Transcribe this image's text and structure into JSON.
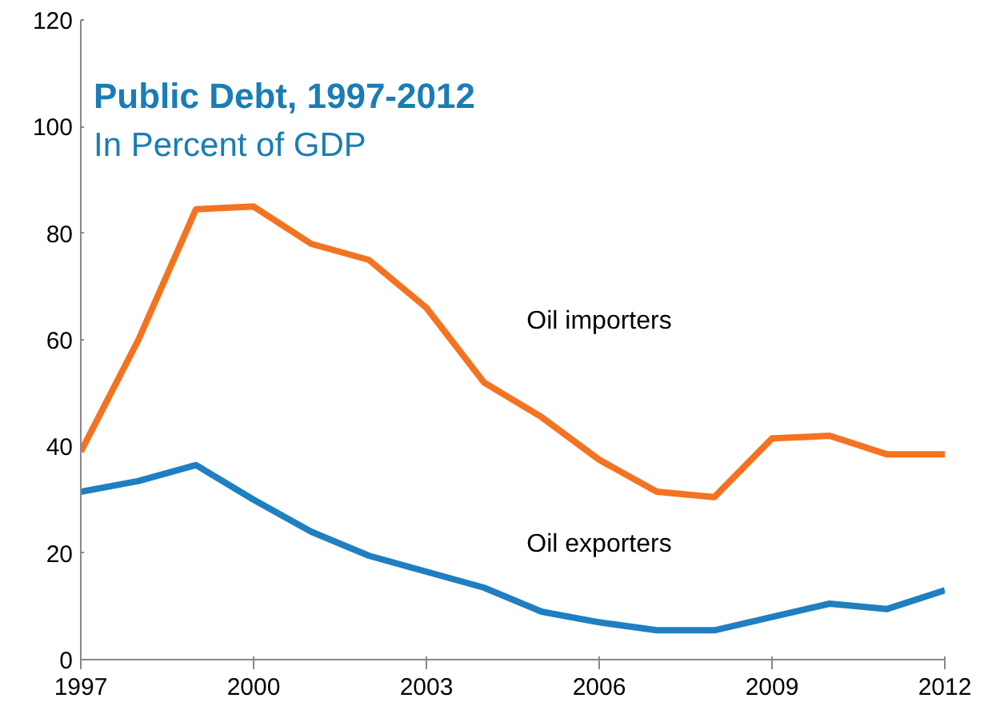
{
  "chart_data": {
    "type": "line",
    "title": "Public Debt, 1997-2012",
    "subtitle": "In Percent of GDP",
    "x": [
      1997,
      1998,
      1999,
      2000,
      2001,
      2002,
      2003,
      2004,
      2005,
      2006,
      2007,
      2008,
      2009,
      2010,
      2011,
      2012
    ],
    "series": [
      {
        "name": "Oil importers",
        "color": "#f47320",
        "values": [
          39,
          60,
          84.5,
          85,
          78,
          75,
          66,
          52,
          45.5,
          37.5,
          31.5,
          30.5,
          41.5,
          42,
          38.5,
          38.5
        ]
      },
      {
        "name": "Oil exporters",
        "color": "#1f7fc0",
        "values": [
          31.5,
          33.5,
          36.5,
          30,
          24,
          19.5,
          16.5,
          13.5,
          9,
          7,
          5.5,
          5.5,
          8,
          10.5,
          9.5,
          13
        ]
      }
    ],
    "xlim": [
      1997,
      2012
    ],
    "xticks": [
      1997,
      2000,
      2003,
      2006,
      2009,
      2012
    ],
    "ylim": [
      0,
      120
    ],
    "yticks": [
      0,
      20,
      40,
      60,
      80,
      100,
      120
    ],
    "grid": false,
    "legend": false
  }
}
